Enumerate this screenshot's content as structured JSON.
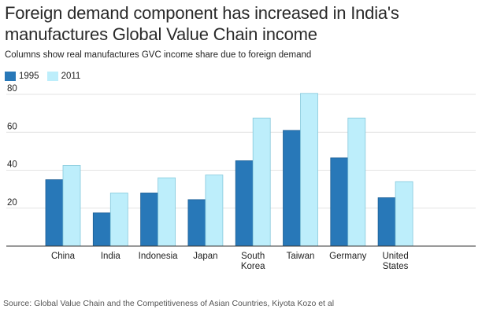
{
  "chart_data": {
    "type": "bar",
    "title": "Foreign demand component has increased in India's manufactures Global Value Chain income",
    "subtitle": "Columns show real manufactures GVC income share due to foreign demand",
    "categories": [
      [
        "China"
      ],
      [
        "India"
      ],
      [
        "Indonesia"
      ],
      [
        "Japan"
      ],
      [
        "South",
        "Korea"
      ],
      [
        "Taiwan"
      ],
      [
        "Germany"
      ],
      [
        "United",
        "States"
      ]
    ],
    "series": [
      {
        "name": "1995",
        "color": "#2878b8",
        "values": [
          35,
          17.5,
          28,
          24.5,
          45,
          61,
          46.5,
          25.5
        ]
      },
      {
        "name": "2011",
        "color": "#bdeefb",
        "values": [
          42.5,
          28,
          36,
          37.5,
          67.5,
          80.5,
          67.5,
          34
        ]
      }
    ],
    "ylim": [
      0,
      80
    ],
    "yticks": [
      "20",
      "40",
      "60",
      "80"
    ],
    "grid": true,
    "legend": "top-left",
    "xlabel": "",
    "ylabel": "",
    "source": "Source: Global Value Chain and the Competitiveness of Asian Countries, Kiyota Kozo et al"
  }
}
